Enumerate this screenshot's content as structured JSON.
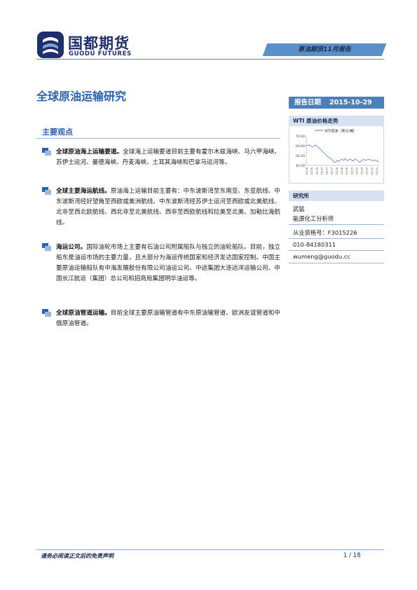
{
  "header": {
    "logo_cn": "国都期货",
    "logo_en": "GUODU FUTURES",
    "report_tag": "原油期货11月报告"
  },
  "title": "全球原油运输研究",
  "date": {
    "label": "报告日期",
    "value": "2015-10-29"
  },
  "summary": {
    "title": "主要观点",
    "bullets": [
      {
        "bold": "全球原油海上运输要道。",
        "text": "全球海上运输要道目前主要有霍尔木兹海峡、马六甲海峡、苏伊士运河、曼德海峡、丹麦海峡、土耳其海峡和巴拿马运河等。"
      },
      {
        "bold": "全球主要海运航线。",
        "text": "原油海上运输目前主要有：中东波斯湾至东南亚、东亚航线、中东波斯湾经好望角至西欧或美洲航线、中东波斯湾经苏伊士运河至西欧或北美航线、北非至西北欧航线、西北非至北美航线、西非至西欧航线和拉美至北美、加勒比海航线。"
      },
      {
        "bold": "海运公司。",
        "text": "国际油轮市场上主要有石油公司附属船队与独立的油轮船队。目前，独立船东是油运市场的主要力量，且大部分为海运传统国家和经济发达国家控制。中国主要原油运输船队有中海发展股份有限公司油运公司、中远集团大连远洋运输公司、中国长江航运（集团）总公司和招商局集团明华油运等。"
      },
      {
        "bold": "全球原油管道运输。",
        "text": "目前全球主要原油输管道有中东原油输管道、欧洲友谊管道和中俄原油管道。"
      }
    ]
  },
  "sidebar": {
    "chart_header": "WTI 原油价格走势",
    "research_header": "研究所",
    "analyst_name": "武猛",
    "analyst_title": "能源化工分析师",
    "license": "从业资格号：F3015226",
    "phone": "010-84180311",
    "email": "wumeng@guodu.cc"
  },
  "chart_data": {
    "type": "line",
    "series": [
      {
        "name": "WTI原油（美元/桶）",
        "values": [
          60.5,
          60.2,
          61.0,
          59.5,
          58.8,
          59.6,
          60.8,
          59.9,
          58.5,
          57.2,
          55.8,
          54.0,
          52.6,
          51.0,
          49.5,
          48.3,
          47.4,
          46.1,
          44.6,
          42.8,
          43.7,
          45.2,
          44.0,
          45.6,
          46.3,
          45.0,
          46.8,
          45.5,
          44.9,
          46.0,
          46.3,
          44.3,
          45.1,
          46.4,
          45.6,
          44.2,
          43.1,
          44.6,
          45.7,
          46.0,
          45.0,
          45.8,
          46.4,
          45.7,
          45.2,
          44.8,
          45.3,
          45.0,
          44.2,
          43.5
        ]
      }
    ],
    "x_tick_labels": [
      "15-06",
      "15-06",
      "15-06",
      "15-07",
      "15-07",
      "15-07",
      "15-08",
      "15-08",
      "15-08",
      "15-09",
      "15-09",
      "15-09",
      "15-10",
      "15-10",
      "15-10"
    ],
    "y_tick_labels": [
      "70.00",
      "60.00",
      "50.00",
      "40.00"
    ],
    "ylim": [
      40,
      70
    ],
    "color": "#5b7fb8"
  },
  "footer": {
    "disclaimer": "请务必阅读正文后的免责声明",
    "page": "1 / 18"
  },
  "colors": {
    "brand_blue": "#2a63b5",
    "dark_navy": "#1f2f6e",
    "bar_blue": "#4e7fbd",
    "light_blue": "#d6e2f1"
  }
}
